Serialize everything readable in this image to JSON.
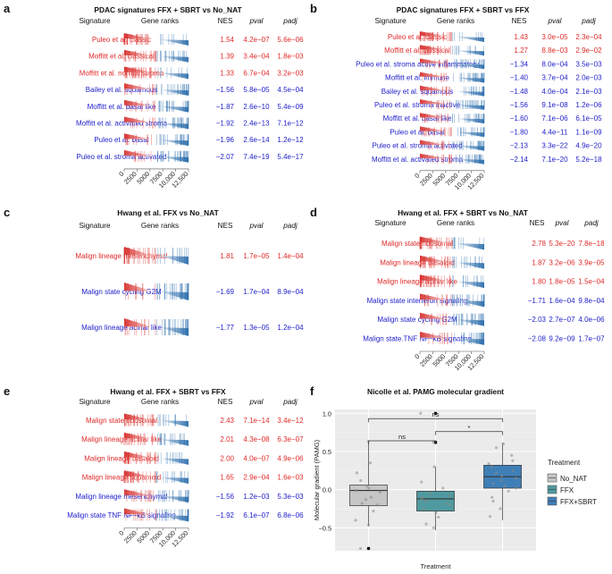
{
  "colors": {
    "up": "#e02b2b",
    "down": "#2222cc",
    "red_bar": "#d7322f",
    "blue_bar": "#2e6fad",
    "no_nat": "#c6c6c6",
    "ffx": "#4f9aa0",
    "ffx_sbrt": "#3f7fb7"
  },
  "headers": {
    "signature": "Signature",
    "gene_ranks": "Gene ranks",
    "nes": "NES",
    "pval": "pval",
    "padj": "padj"
  },
  "rank_ticks": [
    "0",
    "2500",
    "5000",
    "7500",
    "10,000",
    "12,500"
  ],
  "panels": [
    {
      "id": "a",
      "label": "a",
      "title": "PDAC signatures FFX + SBRT vs No_NAT",
      "show_ticks": true,
      "rows": [
        {
          "sig": "Puleo et al. classic",
          "nes": "1.54",
          "pval": "4.2e−07",
          "padj": "5.6e−06"
        },
        {
          "sig": "Moffitt et al. classical",
          "nes": "1.39",
          "pval": "3.4e−04",
          "padj": "1.8e−03"
        },
        {
          "sig": "Moffitt et al. normal stroma",
          "nes": "1.33",
          "pval": "6.7e−04",
          "padj": "3.2e−03"
        },
        {
          "sig": "Bailey et al. squamous",
          "nes": "−1.56",
          "pval": "5.8e−05",
          "padj": "4.5e−04"
        },
        {
          "sig": "Moffitt et al. basal like",
          "nes": "−1.87",
          "pval": "2.6e−10",
          "padj": "5.4e−09"
        },
        {
          "sig": "Moffitt et al. activated stroma",
          "nes": "−1.92",
          "pval": "2.4e−13",
          "padj": "7.1e−12"
        },
        {
          "sig": "Puleo et al. basal",
          "nes": "−1.96",
          "pval": "2.6e−14",
          "padj": "1.2e−12"
        },
        {
          "sig": "Puleo et al. stroma activated",
          "nes": "−2.07",
          "pval": "7.4e−19",
          "padj": "5.4e−17"
        }
      ]
    },
    {
      "id": "b",
      "label": "b",
      "title": "PDAC signatures FFX + SBRT vs FFX",
      "show_ticks": true,
      "rows": [
        {
          "sig": "Puleo et al. classic",
          "nes": "1.43",
          "pval": "3.0e−05",
          "padj": "2.3e−04"
        },
        {
          "sig": "Moffitt et al. classical",
          "nes": "1.27",
          "pval": "8.8e−03",
          "padj": "2.9e−02"
        },
        {
          "sig": "Puleo et al. stroma active inflammatory",
          "nes": "−1.34",
          "pval": "8.0e−04",
          "padj": "3.5e−03"
        },
        {
          "sig": "Moffitt et al. immune",
          "nes": "−1.40",
          "pval": "3.7e−04",
          "padj": "2.0e−03"
        },
        {
          "sig": "Bailey et al. squamous",
          "nes": "−1.48",
          "pval": "4.0e−04",
          "padj": "2.1e−03"
        },
        {
          "sig": "Puleo et al. stroma inactive",
          "nes": "−1.56",
          "pval": "9.1e−08",
          "padj": "1.2e−06"
        },
        {
          "sig": "Moffitt et al. basal like",
          "nes": "−1.60",
          "pval": "7.1e−06",
          "padj": "6.1e−05"
        },
        {
          "sig": "Puleo et al. basal",
          "nes": "−1.80",
          "pval": "4.4e−11",
          "padj": "1.1e−09"
        },
        {
          "sig": "Puleo et al. stroma activated",
          "nes": "−2.13",
          "pval": "3.3e−22",
          "padj": "4.9e−20"
        },
        {
          "sig": "Moffitt et al. activated stroma",
          "nes": "−2.14",
          "pval": "7.1e−20",
          "padj": "5.2e−18"
        }
      ]
    },
    {
      "id": "c",
      "label": "c",
      "title": "Hwang et al. FFX vs No_NAT",
      "show_ticks": false,
      "rows": [
        {
          "sig": "Malign lineage mesenchymal",
          "nes": "1.81",
          "pval": "1.7e−05",
          "padj": "1.4e−04"
        },
        {
          "sig": "Malign state cycling G2M",
          "nes": "−1.69",
          "pval": "1.7e−04",
          "padj": "8.9e−04"
        },
        {
          "sig": "Malign lineage acinar like",
          "nes": "−1.77",
          "pval": "1.3e−05",
          "padj": "1.2e−04"
        }
      ]
    },
    {
      "id": "d",
      "label": "d",
      "title": "Hwang et al. FFX + SBRT vs No_NAT",
      "show_ticks": true,
      "rows": [
        {
          "sig": "Malign state ribosomal",
          "nes": "2.78",
          "pval": "5.3e−20",
          "padj": "7.8e−18"
        },
        {
          "sig": "Malign lineage basaloid",
          "nes": "1.87",
          "pval": "3.2e−06",
          "padj": "3.9e−05"
        },
        {
          "sig": "Malign lineage acinar like",
          "nes": "1.80",
          "pval": "1.8e−05",
          "padj": "1.5e−04"
        },
        {
          "sig": "Malign state interferon signaling",
          "nes": "−1.71",
          "pval": "1.6e−04",
          "padj": "9.8e−04"
        },
        {
          "sig": "Malign state cycling G2M",
          "nes": "−2.03",
          "pval": "2.7e−07",
          "padj": "4.0e−06"
        },
        {
          "sig": "Malign state.TNF NF−kB signaling",
          "nes": "−2.08",
          "pval": "9.2e−09",
          "padj": "1.7e−07"
        }
      ]
    },
    {
      "id": "e",
      "label": "e",
      "title": "Hwang et al. FFX + SBRT vs FFX",
      "show_ticks": true,
      "rows": [
        {
          "sig": "Malign state ribosomal",
          "nes": "2.43",
          "pval": "7.1e−14",
          "padj": "3.4e−12"
        },
        {
          "sig": "Malign lineage acinar like",
          "nes": "2.01",
          "pval": "4.3e−08",
          "padj": "6.3e−07"
        },
        {
          "sig": "Malign lineage basaloid",
          "nes": "2.00",
          "pval": "4.0e−07",
          "padj": "4.9e−06"
        },
        {
          "sig": "Malign lineage squamoid",
          "nes": "1.65",
          "pval": "2.9e−04",
          "padj": "1.6e−03"
        },
        {
          "sig": "Malign lineage mesenchymal",
          "nes": "−1.56",
          "pval": "1.2e−03",
          "padj": "5.3e−03"
        },
        {
          "sig": "Malign state TNF NF−kB signaling",
          "nes": "−1.92",
          "pval": "6.1e−07",
          "padj": "6.8e−06"
        }
      ]
    }
  ],
  "chart_data": {
    "type": "boxplot",
    "label": "f",
    "title": "Nicolle et al. PAMG molecular gradient",
    "xlabel": "Treatment",
    "ylabel": "Molecular gradient (PAMG)",
    "ylim": [
      -0.8,
      1.05
    ],
    "yticks": [
      "-0.5",
      "0.0",
      "0.5",
      "1.0"
    ],
    "legend_title": "Treatment",
    "groups": [
      {
        "name": "No_NAT",
        "q1": -0.21,
        "median": -0.01,
        "q3": 0.06,
        "whisker_low": -0.48,
        "whisker_high": 0.62,
        "outliers": [
          -0.77
        ],
        "points": [
          0.63,
          0.35,
          0.22,
          0.12,
          0.05,
          0.02,
          -0.01,
          -0.03,
          -0.1,
          -0.13,
          -0.18,
          -0.2,
          -0.28,
          -0.4,
          -0.46,
          -0.77
        ]
      },
      {
        "name": "FFX",
        "q1": -0.28,
        "median": -0.12,
        "q3": -0.02,
        "whisker_low": -0.53,
        "whisker_high": 0.3,
        "outliers": [
          1.0,
          0.62
        ],
        "points": [
          1.0,
          0.62,
          0.3,
          0.1,
          0.02,
          -0.05,
          -0.08,
          -0.1,
          -0.12,
          -0.15,
          -0.18,
          -0.2,
          -0.25,
          -0.3,
          -0.36,
          -0.45,
          -0.5
        ]
      },
      {
        "name": "FFX+SBRT",
        "q1": 0.02,
        "median": 0.17,
        "q3": 0.32,
        "whisker_low": -0.4,
        "whisker_high": 0.62,
        "outliers": [],
        "points": [
          0.6,
          0.55,
          0.45,
          0.38,
          0.34,
          0.3,
          0.25,
          0.22,
          0.18,
          0.15,
          0.12,
          0.08,
          0.05,
          0.02,
          -0.02,
          -0.1,
          -0.15,
          -0.25,
          -0.35
        ]
      }
    ],
    "comparisons": [
      {
        "pair": [
          "No_NAT",
          "FFX"
        ],
        "label": "ns"
      },
      {
        "pair": [
          "No_NAT",
          "FFX+SBRT"
        ],
        "label": "ns"
      },
      {
        "pair": [
          "FFX",
          "FFX+SBRT"
        ],
        "label": "*"
      }
    ]
  }
}
